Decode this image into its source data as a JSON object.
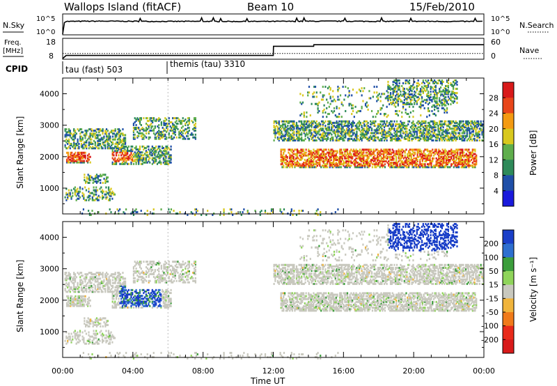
{
  "header": {
    "site": "Wallops Island (fitACF)",
    "beam": "Beam 10",
    "date": "15/Feb/2010"
  },
  "noise_panel": {
    "left_label": "N.Sky",
    "right_label": "N.Search",
    "ytick_top": "10^5",
    "ytick_bottom": "10^0"
  },
  "freq_panel": {
    "left_label_1": "Freq.",
    "left_label_2": "[MHz]",
    "right_label": "Nave",
    "ytick_top": "18",
    "ytick_bottom": "8",
    "y2tick_top": "60",
    "y2tick_bottom": "0"
  },
  "cpid": {
    "label": "CPID",
    "programs": [
      {
        "name": "tau (fast) 503",
        "start_hour": 0
      },
      {
        "name": "themis (tau) 3310",
        "start_hour": 6
      }
    ]
  },
  "power_panel": {
    "ylabel": "Slant Range [km]",
    "colorbar_label": "Power [dB]",
    "colorbar_ticks": [
      "4",
      "8",
      "12",
      "16",
      "20",
      "24",
      "28"
    ],
    "colors": [
      "#1a1adc",
      "#1f4fa8",
      "#2e8a5a",
      "#5fae4c",
      "#d8c81e",
      "#f39a12",
      "#e8461a",
      "#d81a1a"
    ]
  },
  "velocity_panel": {
    "ylabel": "Slant Range [km]",
    "colorbar_label": "Velocity [m s⁻¹]",
    "colorbar_ticks": [
      "200",
      "100",
      "50",
      "15",
      "-15",
      "-50",
      "-100",
      "-200"
    ],
    "colors": [
      "#1a3fc8",
      "#2e6fcf",
      "#3c9e3c",
      "#8fd45a",
      "#c8c8be",
      "#f0b43c",
      "#f07a1a",
      "#e82a1a",
      "#d81a1a"
    ]
  },
  "xaxis": {
    "label": "Time UT",
    "ticks": [
      "00:00",
      "04:00",
      "08:00",
      "12:00",
      "16:00",
      "20:00",
      "00:00"
    ]
  },
  "chart_data": [
    {
      "type": "line",
      "panel": "noise",
      "series": [
        {
          "name": "N.Sky",
          "x": [
            0,
            0.2,
            2,
            4,
            6,
            8,
            10,
            12,
            14,
            16,
            18,
            20,
            22,
            24
          ],
          "y": [
            1,
            3000,
            3500,
            3200,
            3000,
            3100,
            2900,
            3000,
            3300,
            3400,
            3100,
            3200,
            3000,
            2900
          ]
        }
      ],
      "ylabels": [
        "10^0",
        "10^5"
      ]
    },
    {
      "type": "line",
      "panel": "frequency",
      "series": [
        {
          "name": "Freq.",
          "x": [
            0,
            0.2,
            12,
            12.01,
            14.3,
            14.31,
            24
          ],
          "y": [
            8,
            10,
            10,
            16,
            16,
            17,
            17
          ]
        },
        {
          "name": "Nave",
          "x": [
            0,
            24
          ],
          "y": [
            20,
            20
          ]
        }
      ],
      "ylim": [
        8,
        18
      ],
      "y2lim": [
        0,
        60
      ]
    },
    {
      "type": "heatmap",
      "panel": "power",
      "x_range_hours": [
        0,
        24
      ],
      "y_range_km": [
        180,
        4500
      ],
      "ylabel": "Slant Range [km]",
      "colorbar": "Power [dB]",
      "color_ticks": [
        4,
        8,
        12,
        16,
        20,
        24,
        28
      ]
    },
    {
      "type": "heatmap",
      "panel": "velocity",
      "x_range_hours": [
        0,
        24
      ],
      "y_range_km": [
        180,
        4500
      ],
      "ylabel": "Slant Range [km]",
      "colorbar": "Velocity [m s⁻¹]",
      "color_ticks": [
        200,
        100,
        50,
        15,
        -15,
        -50,
        -100,
        -200
      ]
    }
  ]
}
